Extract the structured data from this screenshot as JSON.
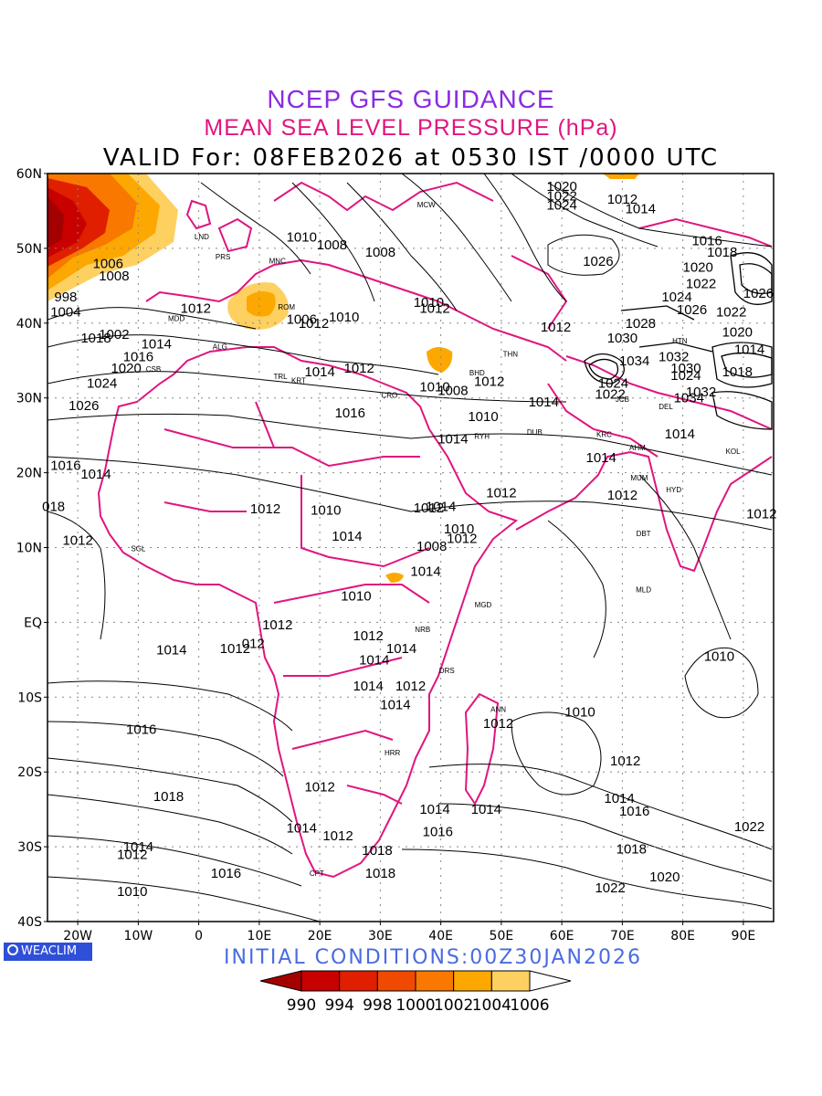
{
  "header": {
    "line1": "NCEP GFS GUIDANCE",
    "line2": "MEAN SEA LEVEL PRESSURE (hPa)",
    "line3": "VALID For: 08FEB2026 at 0530 IST /0000 UTC"
  },
  "footer": {
    "logo_text": "WEACLIM",
    "initial_conditions": "INITIAL  CONDITIONS:00Z30JAN2026"
  },
  "axes": {
    "lat_labels": [
      "60N",
      "50N",
      "40N",
      "30N",
      "20N",
      "10N",
      "EQ",
      "10S",
      "20S",
      "30S",
      "40S"
    ],
    "lon_labels": [
      "20W",
      "10W",
      "0",
      "10E",
      "20E",
      "30E",
      "40E",
      "50E",
      "60E",
      "70E",
      "80E",
      "90E"
    ]
  },
  "legend": {
    "labels": [
      "990",
      "994",
      "998",
      "1000",
      "1002",
      "1004",
      "1006"
    ],
    "colors": [
      "#a50000",
      "#c80000",
      "#e01e00",
      "#f04a00",
      "#f87800",
      "#fca800",
      "#fdd060",
      "#ffffff"
    ]
  },
  "contour_labels": [
    {
      "t": "1008",
      "lon": 30,
      "lat": 49.5
    },
    {
      "t": "1010",
      "lon": 17,
      "lat": 51.5
    },
    {
      "t": "1008",
      "lon": 22,
      "lat": 50.5
    },
    {
      "t": "1006",
      "lon": -15,
      "lat": 48
    },
    {
      "t": "1008",
      "lon": -14,
      "lat": 46.3
    },
    {
      "t": "1004",
      "lon": -22,
      "lat": 41.5
    },
    {
      "t": "998",
      "lon": -22,
      "lat": 43.5
    },
    {
      "t": "1002",
      "lon": -14,
      "lat": 38.5
    },
    {
      "t": "1012",
      "lon": -0.5,
      "lat": 42
    },
    {
      "t": "1018",
      "lon": -17,
      "lat": 38
    },
    {
      "t": "1014",
      "lon": -7,
      "lat": 37.2
    },
    {
      "t": "1016",
      "lon": -10,
      "lat": 35.5
    },
    {
      "t": "1020",
      "lon": -12,
      "lat": 34
    },
    {
      "t": "1024",
      "lon": -16,
      "lat": 32
    },
    {
      "t": "1026",
      "lon": -19,
      "lat": 29
    },
    {
      "t": "1016",
      "lon": -22,
      "lat": 21
    },
    {
      "t": "1014",
      "lon": -17,
      "lat": 19.8
    },
    {
      "t": "018",
      "lon": -24,
      "lat": 15.5
    },
    {
      "t": "1012",
      "lon": -20,
      "lat": 11
    },
    {
      "t": "1012",
      "lon": 19,
      "lat": 40
    },
    {
      "t": "1006",
      "lon": 17,
      "lat": 40.5
    },
    {
      "t": "1010",
      "lon": 24,
      "lat": 40.8
    },
    {
      "t": "1014",
      "lon": 20,
      "lat": 33.5
    },
    {
      "t": "1012",
      "lon": 26.5,
      "lat": 34
    },
    {
      "t": "1016",
      "lon": 25,
      "lat": 28
    },
    {
      "t": "1012",
      "lon": 39,
      "lat": 42
    },
    {
      "t": "1010",
      "lon": 38,
      "lat": 42.8
    },
    {
      "t": "1012",
      "lon": 48,
      "lat": 32.2
    },
    {
      "t": "1008",
      "lon": 42,
      "lat": 31
    },
    {
      "t": "1010",
      "lon": 39,
      "lat": 31.5
    },
    {
      "t": "1014",
      "lon": 57,
      "lat": 29.5
    },
    {
      "t": "1014",
      "lon": 42,
      "lat": 24.5
    },
    {
      "t": "1010",
      "lon": 47,
      "lat": 27.5
    },
    {
      "t": "1012",
      "lon": 59,
      "lat": 39.5
    },
    {
      "t": "1014",
      "lon": 66.5,
      "lat": 22
    },
    {
      "t": "1012",
      "lon": 70,
      "lat": 17
    },
    {
      "t": "1012",
      "lon": 50,
      "lat": 17.3
    },
    {
      "t": "1014",
      "lon": 40,
      "lat": 15.5
    },
    {
      "t": "1012",
      "lon": 38,
      "lat": 15.3
    },
    {
      "t": "1010",
      "lon": 21,
      "lat": 15
    },
    {
      "t": "1012",
      "lon": 11,
      "lat": 15.2
    },
    {
      "t": "1014",
      "lon": 24.5,
      "lat": 11.5
    },
    {
      "t": "1010",
      "lon": 43,
      "lat": 12.5
    },
    {
      "t": "1012",
      "lon": 43.5,
      "lat": 11.2
    },
    {
      "t": "1008",
      "lon": 38.5,
      "lat": 10.2
    },
    {
      "t": "1014",
      "lon": 37.5,
      "lat": 6.8
    },
    {
      "t": "1010",
      "lon": 26,
      "lat": 3.5
    },
    {
      "t": "1012",
      "lon": 13,
      "lat": -0.3
    },
    {
      "t": "1014",
      "lon": -4.5,
      "lat": -3.7
    },
    {
      "t": "1012",
      "lon": 6,
      "lat": -3.5
    },
    {
      "t": "012",
      "lon": 9,
      "lat": -2.8
    },
    {
      "t": "1012",
      "lon": 28,
      "lat": -1.8
    },
    {
      "t": "1014",
      "lon": 29,
      "lat": -5
    },
    {
      "t": "1014",
      "lon": 33.5,
      "lat": -3.5
    },
    {
      "t": "1014",
      "lon": 28,
      "lat": -8.5
    },
    {
      "t": "1012",
      "lon": 35,
      "lat": -8.5
    },
    {
      "t": "1014",
      "lon": 32.5,
      "lat": -11
    },
    {
      "t": "1012",
      "lon": 49.5,
      "lat": -13.5
    },
    {
      "t": "1010",
      "lon": 63,
      "lat": -12
    },
    {
      "t": "1010",
      "lon": 86,
      "lat": -4.5
    },
    {
      "t": "1016",
      "lon": -9.5,
      "lat": -14.3
    },
    {
      "t": "1012",
      "lon": 70.5,
      "lat": -18.5
    },
    {
      "t": "1012",
      "lon": 20,
      "lat": -22
    },
    {
      "t": "1018",
      "lon": -5,
      "lat": -23.3
    },
    {
      "t": "1014",
      "lon": 69.5,
      "lat": -23.5
    },
    {
      "t": "1016",
      "lon": 72,
      "lat": -25.2
    },
    {
      "t": "1014",
      "lon": 39,
      "lat": -25
    },
    {
      "t": "1014",
      "lon": 47.5,
      "lat": -25
    },
    {
      "t": "1014",
      "lon": 17,
      "lat": -27.5
    },
    {
      "t": "1016",
      "lon": 39.5,
      "lat": -28
    },
    {
      "t": "1012",
      "lon": 23,
      "lat": -28.5
    },
    {
      "t": "1018",
      "lon": 29.5,
      "lat": -30.5
    },
    {
      "t": "1018",
      "lon": 71.5,
      "lat": -30.3
    },
    {
      "t": "1014",
      "lon": -10,
      "lat": -30
    },
    {
      "t": "1012",
      "lon": -11,
      "lat": -31
    },
    {
      "t": "1022",
      "lon": 91,
      "lat": -27.3
    },
    {
      "t": "1016",
      "lon": 4.5,
      "lat": -33.5
    },
    {
      "t": "1018",
      "lon": 30,
      "lat": -33.5
    },
    {
      "t": "1020",
      "lon": 77,
      "lat": -34
    },
    {
      "t": "1010",
      "lon": -11,
      "lat": -36
    },
    {
      "t": "1022",
      "lon": 68,
      "lat": -35.5
    },
    {
      "t": "1024",
      "lon": 60,
      "lat": 55.8
    },
    {
      "t": "1022",
      "lon": 60,
      "lat": 57
    },
    {
      "t": "1020",
      "lon": 60,
      "lat": 58.3
    },
    {
      "t": "1012",
      "lon": 70,
      "lat": 56.6
    },
    {
      "t": "1014",
      "lon": 73,
      "lat": 55.3
    },
    {
      "t": "1026",
      "lon": 66,
      "lat": 48.3
    },
    {
      "t": "1016",
      "lon": 84,
      "lat": 51
    },
    {
      "t": "1018",
      "lon": 86.5,
      "lat": 49.5
    },
    {
      "t": "1020",
      "lon": 82.5,
      "lat": 47.5
    },
    {
      "t": "1022",
      "lon": 83,
      "lat": 45.3
    },
    {
      "t": "1024",
      "lon": 79,
      "lat": 43.5
    },
    {
      "t": "1026",
      "lon": 81.5,
      "lat": 41.8
    },
    {
      "t": "1028",
      "lon": 73,
      "lat": 40
    },
    {
      "t": "1030",
      "lon": 70,
      "lat": 38
    },
    {
      "t": "1034",
      "lon": 72,
      "lat": 35
    },
    {
      "t": "1032",
      "lon": 78.5,
      "lat": 35.5
    },
    {
      "t": "1030",
      "lon": 80.5,
      "lat": 34
    },
    {
      "t": "1024",
      "lon": 80.5,
      "lat": 33
    },
    {
      "t": "1018",
      "lon": 89,
      "lat": 33.5
    },
    {
      "t": "1020",
      "lon": 89,
      "lat": 38.8
    },
    {
      "t": "1014",
      "lon": 91,
      "lat": 36.5
    },
    {
      "t": "1022",
      "lon": 88,
      "lat": 41.5
    },
    {
      "t": "1024",
      "lon": 68.5,
      "lat": 32
    },
    {
      "t": "1022",
      "lon": 68,
      "lat": 30.5
    },
    {
      "t": "1034",
      "lon": 81,
      "lat": 30
    },
    {
      "t": "1032",
      "lon": 83,
      "lat": 30.8
    },
    {
      "t": "1014",
      "lon": 79.5,
      "lat": 25.2
    },
    {
      "t": "1012",
      "lon": 93,
      "lat": 14.5
    },
    {
      "t": "1026",
      "lon": 92.5,
      "lat": 44
    }
  ],
  "cities": [
    {
      "t": "MCW",
      "lon": 37.6,
      "lat": 55.5
    },
    {
      "t": "LND",
      "lon": 0.5,
      "lat": 51.2
    },
    {
      "t": "PRS",
      "lon": 4,
      "lat": 48.5
    },
    {
      "t": "MNC",
      "lon": 13,
      "lat": 48
    },
    {
      "t": "ROM",
      "lon": 14.5,
      "lat": 41.8
    },
    {
      "t": "MDD",
      "lon": -3.7,
      "lat": 40.3
    },
    {
      "t": "ALG",
      "lon": 3.5,
      "lat": 36.5
    },
    {
      "t": "CSB",
      "lon": -7.5,
      "lat": 33.5
    },
    {
      "t": "TRL",
      "lon": 13.5,
      "lat": 32.5
    },
    {
      "t": "KRT",
      "lon": 16.5,
      "lat": 32
    },
    {
      "t": "CRO",
      "lon": 31.5,
      "lat": 30
    },
    {
      "t": "BHD",
      "lon": 46,
      "lat": 33
    },
    {
      "t": "THN",
      "lon": 51.5,
      "lat": 35.5
    },
    {
      "t": "RYH",
      "lon": 46.8,
      "lat": 24.5
    },
    {
      "t": "DUB",
      "lon": 55.5,
      "lat": 25.1
    },
    {
      "t": "KRC",
      "lon": 67,
      "lat": 24.8
    },
    {
      "t": "AHM",
      "lon": 72.5,
      "lat": 23
    },
    {
      "t": "MUM",
      "lon": 72.8,
      "lat": 19
    },
    {
      "t": "DEL",
      "lon": 77.2,
      "lat": 28.5
    },
    {
      "t": "KOL",
      "lon": 88.3,
      "lat": 22.5
    },
    {
      "t": "HYD",
      "lon": 78.5,
      "lat": 17.4
    },
    {
      "t": "JCB",
      "lon": 70,
      "lat": 29.5
    },
    {
      "t": "SGL",
      "lon": -10,
      "lat": 9.5
    },
    {
      "t": "MGD",
      "lon": 47,
      "lat": 2
    },
    {
      "t": "NRB",
      "lon": 37,
      "lat": -1.3
    },
    {
      "t": "DRS",
      "lon": 41,
      "lat": -6.8
    },
    {
      "t": "ANN",
      "lon": 49.5,
      "lat": -12
    },
    {
      "t": "HRR",
      "lon": 32,
      "lat": -17.8
    },
    {
      "t": "CPT",
      "lon": 19.5,
      "lat": -33.9
    },
    {
      "t": "MLD",
      "lon": 73.5,
      "lat": 4
    },
    {
      "t": "HTN",
      "lon": 79.5,
      "lat": 37.3
    },
    {
      "t": "DBT",
      "lon": 73.5,
      "lat": 11.5
    }
  ]
}
